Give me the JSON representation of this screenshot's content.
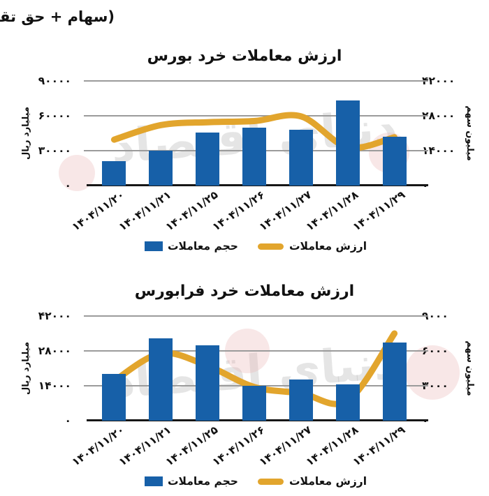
{
  "header": {
    "note": "(سهام + حق تقدم)"
  },
  "watermark": {
    "text": "دنیای اقتصاد"
  },
  "colors": {
    "bar_blue": "#1760A8",
    "line_gold": "#E2A52D",
    "gridline": "#9b9b9b",
    "axis_black": "#161616",
    "text_black": "#111111"
  },
  "chart_data": [
    {
      "type": "bar+line",
      "title": "ارزش معاملات خرد بورس",
      "categories": [
        "۱۴۰۴/۱۱/۲۰",
        "۱۴۰۴/۱۱/۲۱",
        "۱۴۰۴/۱۱/۲۵",
        "۱۴۰۴/۱۱/۲۶",
        "۱۴۰۴/۱۱/۲۷",
        "۱۴۰۴/۱۱/۲۸",
        "۱۴۰۴/۱۱/۲۹"
      ],
      "series": [
        {
          "name": "حجم معاملات",
          "type": "bar",
          "axis": "right",
          "values": [
            9800,
            13900,
            21400,
            23300,
            22400,
            34200,
            19700
          ]
        },
        {
          "name": "ارزش معاملات",
          "type": "line",
          "axis": "left",
          "values": [
            39500,
            52000,
            54500,
            55500,
            59500,
            33000,
            41500
          ]
        }
      ],
      "left_axis": {
        "label": "میلیارد ریال",
        "min": 0,
        "max": 90000,
        "step": 30000,
        "ticks": [
          "۹۰۰۰۰",
          "۶۰۰۰۰",
          "۳۰۰۰۰",
          "۰"
        ]
      },
      "right_axis": {
        "label": "میلیون سهم",
        "min": 0,
        "max": 42000,
        "step": 14000,
        "ticks": [
          "۴۲۰۰۰",
          "۲۸۰۰۰",
          "۱۴۰۰۰",
          "۰"
        ]
      },
      "grid": true,
      "legend_position": "bottom"
    },
    {
      "type": "bar+line",
      "title": "ارزش معاملات خرد فرابورس",
      "categories": [
        "۱۴۰۴/۱۱/۲۰",
        "۱۴۰۴/۱۱/۲۱",
        "۱۴۰۴/۱۱/۲۵",
        "۱۴۰۴/۱۱/۲۶",
        "۱۴۰۴/۱۱/۲۷",
        "۱۴۰۴/۱۱/۲۸",
        "۱۴۰۴/۱۱/۲۹"
      ],
      "series": [
        {
          "name": "حجم معاملات",
          "type": "bar",
          "axis": "right",
          "values": [
            4000,
            7100,
            6500,
            3000,
            3550,
            3100,
            6750
          ]
        },
        {
          "name": "ارزش معاملات",
          "type": "line",
          "axis": "left",
          "values": [
            16000,
            27000,
            22000,
            13500,
            11000,
            8000,
            35000
          ]
        }
      ],
      "left_axis": {
        "label": "میلیارد ریال",
        "min": 0,
        "max": 42000,
        "step": 14000,
        "ticks": [
          "۴۲۰۰۰",
          "۲۸۰۰۰",
          "۱۴۰۰۰",
          "۰"
        ]
      },
      "right_axis": {
        "label": "میلیون سهم",
        "min": 0,
        "max": 9000,
        "step": 3000,
        "ticks": [
          "۹۰۰۰",
          "۶۰۰۰",
          "۳۰۰۰",
          "۰"
        ]
      },
      "grid": true,
      "legend_position": "bottom"
    }
  ]
}
